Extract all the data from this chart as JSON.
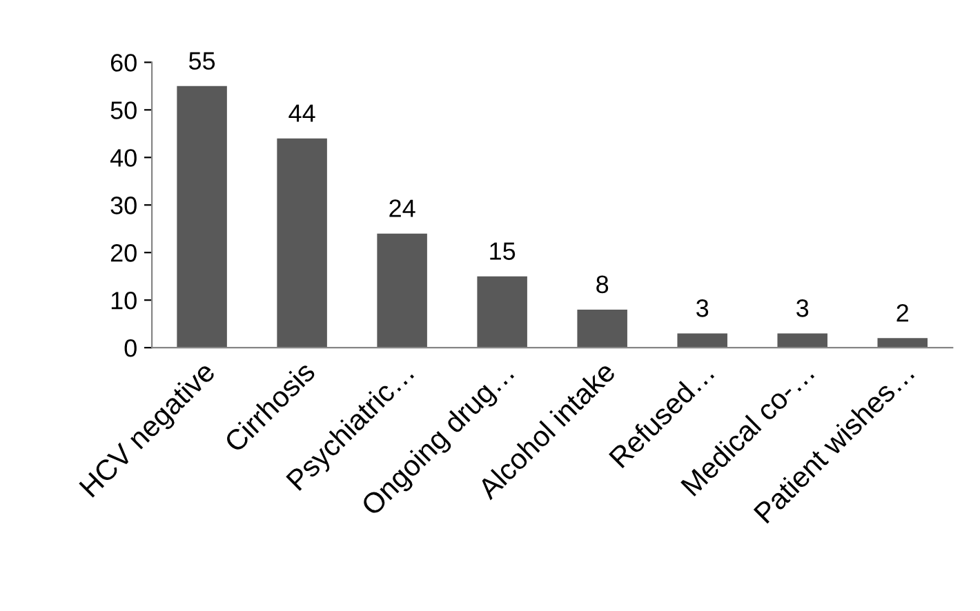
{
  "chart_data": {
    "type": "bar",
    "categories": [
      "HCV negative",
      "Cirrhosis",
      "Psychiatric…",
      "Ongoing drug…",
      "Alcohol intake",
      "Refused…",
      "Medical co-…",
      "Patient wishes…"
    ],
    "values": [
      55,
      44,
      24,
      15,
      8,
      3,
      3,
      2
    ],
    "color": "#595959",
    "ylim": [
      0,
      60
    ],
    "yticks": [
      0,
      10,
      20,
      30,
      40,
      50,
      60
    ],
    "data_labels": true,
    "grid": false,
    "legend": false
  }
}
